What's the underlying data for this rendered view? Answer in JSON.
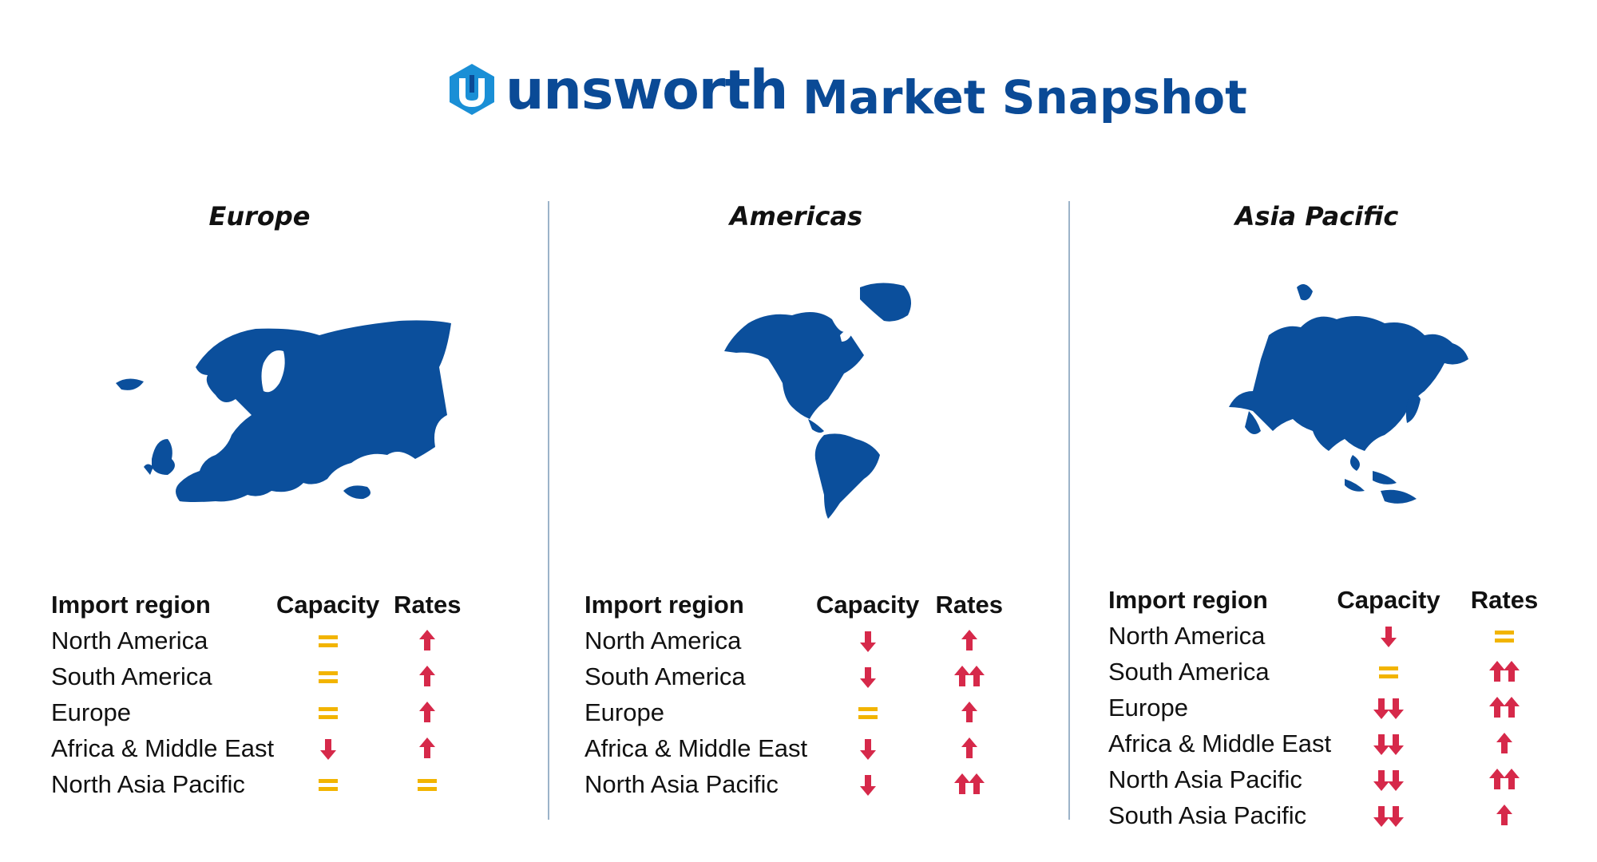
{
  "brand": {
    "name": "unsworth",
    "logo_icon": "unsworth-u-logo-icon",
    "color": "#0a4a96",
    "logo_accent": "#1a8fd6"
  },
  "page_title": "Market Snapshot",
  "colors": {
    "up": "#d6294a",
    "down": "#d6294a",
    "stable": "#f2b400"
  },
  "columns": {
    "region": "Import region",
    "capacity": "Capacity",
    "rates": "Rates"
  },
  "panels": [
    {
      "title": "Europe",
      "map_icon": "europe-map-icon",
      "rows": [
        {
          "region": "North America",
          "capacity": "stable",
          "rates": "up"
        },
        {
          "region": "South America",
          "capacity": "stable",
          "rates": "up"
        },
        {
          "region": "Europe",
          "capacity": "stable",
          "rates": "up"
        },
        {
          "region": "Africa & Middle East",
          "capacity": "down",
          "rates": "up"
        },
        {
          "region": "North Asia Pacific",
          "capacity": "stable",
          "rates": "stable"
        }
      ]
    },
    {
      "title": "Americas",
      "map_icon": "americas-map-icon",
      "rows": [
        {
          "region": "North America",
          "capacity": "down",
          "rates": "up"
        },
        {
          "region": "South America",
          "capacity": "down",
          "rates": "double-up"
        },
        {
          "region": "Europe",
          "capacity": "stable",
          "rates": "up"
        },
        {
          "region": "Africa & Middle East",
          "capacity": "down",
          "rates": "up"
        },
        {
          "region": "North Asia Pacific",
          "capacity": "down",
          "rates": "double-up"
        }
      ]
    },
    {
      "title": "Asia Pacific",
      "map_icon": "asia-pacific-map-icon",
      "rows": [
        {
          "region": "North America",
          "capacity": "down",
          "rates": "stable"
        },
        {
          "region": "South America",
          "capacity": "stable",
          "rates": "double-up"
        },
        {
          "region": "Europe",
          "capacity": "double-down",
          "rates": "double-up"
        },
        {
          "region": "Africa & Middle East",
          "capacity": "double-down",
          "rates": "up"
        },
        {
          "region": "North Asia Pacific",
          "capacity": "double-down",
          "rates": "double-up"
        },
        {
          "region": "South Asia Pacific",
          "capacity": "double-down",
          "rates": "up"
        }
      ]
    }
  ]
}
